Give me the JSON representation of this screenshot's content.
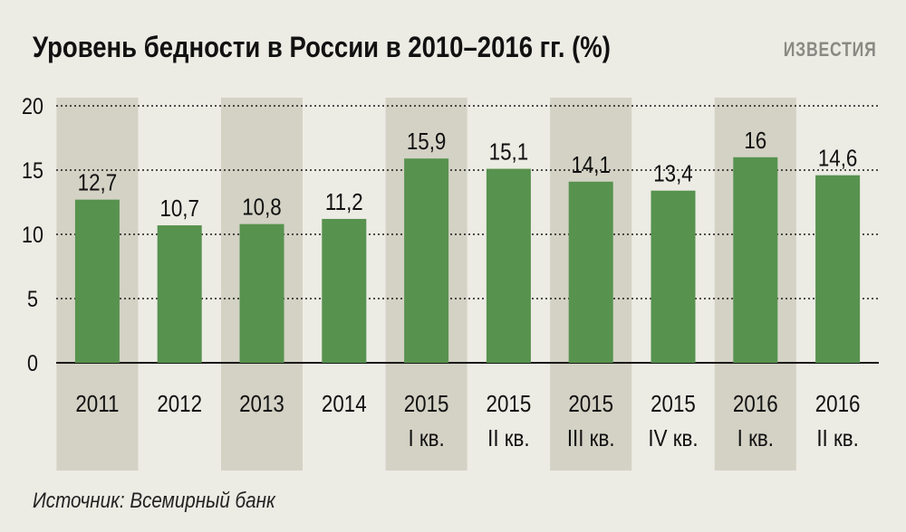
{
  "header": {
    "title": "Уровень бедности в России в 2010–2016 гг. (%)",
    "brand": "ИЗВЕСТИЯ"
  },
  "footer": {
    "source": "Источник: Всемирный банк"
  },
  "colors": {
    "bar": "#57924e",
    "highlight_band": "#d3d2c5",
    "background": "#ecebe4",
    "text": "#111111"
  },
  "chart_data": {
    "type": "bar",
    "title": "Уровень бедности в России в 2010–2016 гг. (%)",
    "categories": [
      [
        "2011"
      ],
      [
        "2012"
      ],
      [
        "2013"
      ],
      [
        "2014"
      ],
      [
        "2015",
        "I кв."
      ],
      [
        "2015",
        "II кв."
      ],
      [
        "2015",
        "III кв."
      ],
      [
        "2015",
        "IV кв."
      ],
      [
        "2016",
        "I кв."
      ],
      [
        "2016",
        "II кв."
      ]
    ],
    "values": [
      12.7,
      10.7,
      10.8,
      11.2,
      15.9,
      15.1,
      14.1,
      13.4,
      16,
      14.6
    ],
    "value_labels": [
      "12,7",
      "10,7",
      "10,8",
      "11,2",
      "15,9",
      "15,1",
      "14,1",
      "13,4",
      "16",
      "14,6"
    ],
    "highlighted": [
      true,
      false,
      true,
      false,
      true,
      false,
      true,
      false,
      true,
      false
    ],
    "yticks": [
      "0",
      "5",
      "10",
      "15",
      "20"
    ],
    "ylim": [
      0,
      20
    ],
    "grid": "dotted-horizontal",
    "legend": "none"
  }
}
